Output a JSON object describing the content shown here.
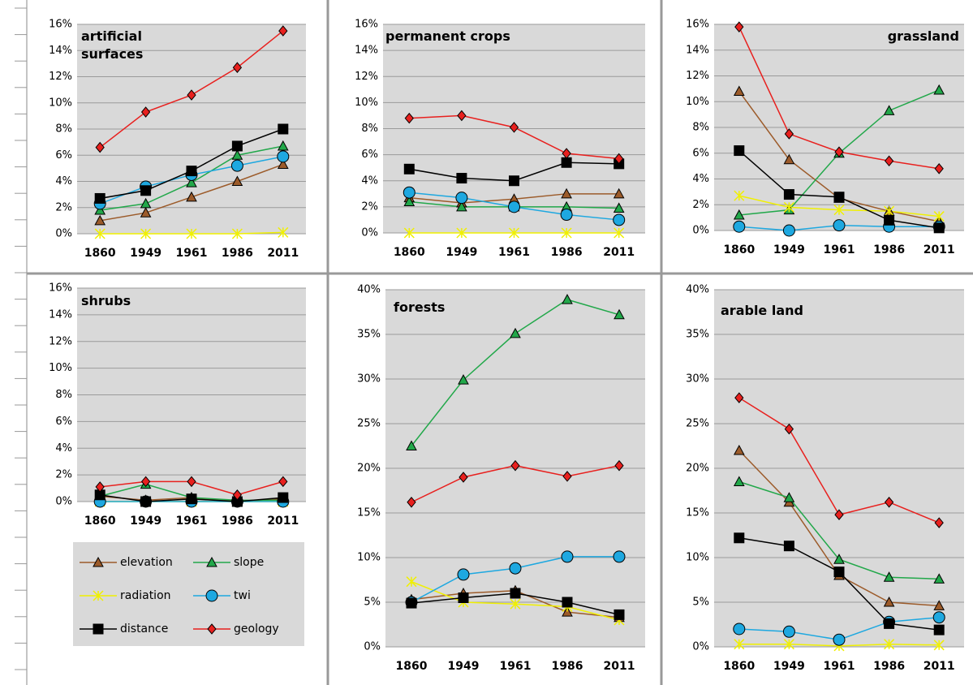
{
  "chart_data": [
    {
      "type": "line",
      "title": "artificial surfaces",
      "categories": [
        "1860",
        "1949",
        "1961",
        "1986",
        "2011"
      ],
      "ylim": [
        0,
        16
      ],
      "yticks": [
        {
          "value": 0,
          "label": "0%"
        },
        {
          "value": 2,
          "label": "2%"
        },
        {
          "value": 4,
          "label": "4%"
        },
        {
          "value": 6,
          "label": "6%"
        },
        {
          "value": 8,
          "label": "8%"
        },
        {
          "value": 10,
          "label": "10%"
        },
        {
          "value": 12,
          "label": "12%"
        },
        {
          "value": 14,
          "label": "14%"
        },
        {
          "value": 16,
          "label": "16%"
        }
      ],
      "grid": true,
      "series": [
        {
          "color": "#9c5b2a",
          "marker": "triangle",
          "values": [
            1.0,
            1.6,
            2.8,
            4.0,
            5.3
          ]
        },
        {
          "color": "#22a84a",
          "marker": "triangle",
          "values": [
            1.8,
            2.3,
            3.9,
            6.0,
            6.7
          ]
        },
        {
          "color": "#f0f000",
          "marker": "star",
          "values": [
            0,
            0,
            0,
            0,
            0.1
          ]
        },
        {
          "color": "#1ea8e0",
          "marker": "circle",
          "values": [
            2.3,
            3.6,
            4.5,
            5.2,
            5.9
          ]
        },
        {
          "color": "#000000",
          "marker": "square",
          "values": [
            2.7,
            3.3,
            4.8,
            6.7,
            8.0
          ]
        },
        {
          "color": "#e8201e",
          "marker": "diamond",
          "values": [
            6.6,
            9.3,
            10.6,
            12.7,
            15.5
          ]
        }
      ]
    },
    {
      "type": "line",
      "title": "permanent crops",
      "categories": [
        "1860",
        "1949",
        "1961",
        "1986",
        "2011"
      ],
      "ylim": [
        0,
        16
      ],
      "yticks": [
        {
          "value": 0,
          "label": "0%"
        },
        {
          "value": 2,
          "label": "2%"
        },
        {
          "value": 4,
          "label": "4%"
        },
        {
          "value": 6,
          "label": "6%"
        },
        {
          "value": 8,
          "label": "8%"
        },
        {
          "value": 10,
          "label": "10%"
        },
        {
          "value": 12,
          "label": "12%"
        },
        {
          "value": 14,
          "label": "14%"
        },
        {
          "value": 16,
          "label": "16%"
        }
      ],
      "grid": true,
      "series": [
        {
          "color": "#9c5b2a",
          "marker": "triangle",
          "values": [
            2.7,
            2.3,
            2.6,
            3.0,
            3.0
          ]
        },
        {
          "color": "#22a84a",
          "marker": "triangle",
          "values": [
            2.4,
            2.0,
            2.0,
            2.0,
            1.9
          ]
        },
        {
          "color": "#f0f000",
          "marker": "star",
          "values": [
            0,
            0,
            0,
            0,
            0
          ]
        },
        {
          "color": "#1ea8e0",
          "marker": "circle",
          "values": [
            3.1,
            2.7,
            2.0,
            1.4,
            1.0
          ]
        },
        {
          "color": "#000000",
          "marker": "square",
          "values": [
            4.9,
            4.2,
            4.0,
            5.4,
            5.3
          ]
        },
        {
          "color": "#e8201e",
          "marker": "diamond",
          "values": [
            8.8,
            9.0,
            8.1,
            6.1,
            5.7
          ]
        }
      ]
    },
    {
      "type": "line",
      "title": "grassland",
      "categories": [
        "1860",
        "1949",
        "1961",
        "1986",
        "2011"
      ],
      "ylim": [
        0,
        16
      ],
      "yticks": [
        {
          "value": 0,
          "label": "0%"
        },
        {
          "value": 2,
          "label": "2%"
        },
        {
          "value": 4,
          "label": "4%"
        },
        {
          "value": 6,
          "label": "6%"
        },
        {
          "value": 8,
          "label": "8%"
        },
        {
          "value": 10,
          "label": "10%"
        },
        {
          "value": 12,
          "label": "12%"
        },
        {
          "value": 14,
          "label": "14%"
        },
        {
          "value": 16,
          "label": "16%"
        }
      ],
      "grid": true,
      "series": [
        {
          "color": "#9c5b2a",
          "marker": "triangle",
          "values": [
            10.8,
            5.5,
            2.5,
            1.5,
            0.7
          ]
        },
        {
          "color": "#22a84a",
          "marker": "triangle",
          "values": [
            1.2,
            1.6,
            6.0,
            9.3,
            10.9
          ]
        },
        {
          "color": "#f0f000",
          "marker": "star",
          "values": [
            2.7,
            1.8,
            1.6,
            1.5,
            1.1
          ]
        },
        {
          "color": "#1ea8e0",
          "marker": "circle",
          "values": [
            0.3,
            0.0,
            0.4,
            0.3,
            0.3
          ]
        },
        {
          "color": "#000000",
          "marker": "square",
          "values": [
            6.2,
            2.8,
            2.6,
            0.8,
            0.2
          ]
        },
        {
          "color": "#e8201e",
          "marker": "diamond",
          "values": [
            15.8,
            7.5,
            6.1,
            5.4,
            4.8
          ]
        }
      ]
    },
    {
      "type": "line",
      "title": "shrubs",
      "categories": [
        "1860",
        "1949",
        "1961",
        "1986",
        "2011"
      ],
      "ylim": [
        0,
        16
      ],
      "yticks": [
        {
          "value": 0,
          "label": "0%"
        },
        {
          "value": 2,
          "label": "2%"
        },
        {
          "value": 4,
          "label": "4%"
        },
        {
          "value": 6,
          "label": "6%"
        },
        {
          "value": 8,
          "label": "8%"
        },
        {
          "value": 10,
          "label": "10%"
        },
        {
          "value": 12,
          "label": "12%"
        },
        {
          "value": 14,
          "label": "14%"
        },
        {
          "value": 16,
          "label": "16%"
        }
      ],
      "grid": true,
      "series": [
        {
          "name": "elevation",
          "color": "#9c5b2a",
          "marker": "triangle",
          "values": [
            0.4,
            0.1,
            0.3,
            0.0,
            0.2
          ]
        },
        {
          "name": "slope",
          "color": "#22a84a",
          "marker": "triangle",
          "values": [
            0.4,
            1.3,
            0.3,
            0.1,
            0.1
          ]
        },
        {
          "name": "radiation",
          "color": "#f0f000",
          "marker": "star",
          "values": [
            0,
            0,
            0,
            0,
            0
          ]
        },
        {
          "name": "twi",
          "color": "#1ea8e0",
          "marker": "circle",
          "values": [
            0,
            0,
            0,
            0,
            0
          ]
        },
        {
          "name": "distance",
          "color": "#000000",
          "marker": "square",
          "values": [
            0.5,
            0.0,
            0.2,
            0.0,
            0.3
          ]
        },
        {
          "name": "geology",
          "color": "#e8201e",
          "marker": "diamond",
          "values": [
            1.1,
            1.5,
            1.5,
            0.5,
            1.5
          ]
        }
      ]
    },
    {
      "type": "line",
      "title": "forests",
      "categories": [
        "1860",
        "1949",
        "1961",
        "1986",
        "2011"
      ],
      "ylim": [
        0,
        40
      ],
      "yticks": [
        {
          "value": 0,
          "label": "0%"
        },
        {
          "value": 5,
          "label": "5%"
        },
        {
          "value": 10,
          "label": "10%"
        },
        {
          "value": 15,
          "label": "15%"
        },
        {
          "value": 20,
          "label": "20%"
        },
        {
          "value": 25,
          "label": "25%"
        },
        {
          "value": 30,
          "label": "30%"
        },
        {
          "value": 35,
          "label": "35%"
        },
        {
          "value": 40,
          "label": "40%"
        }
      ],
      "grid": true,
      "series": [
        {
          "color": "#9c5b2a",
          "marker": "triangle",
          "values": [
            5.3,
            6.0,
            6.3,
            3.9,
            3.3
          ]
        },
        {
          "color": "#22a84a",
          "marker": "triangle",
          "values": [
            22.5,
            29.9,
            35.1,
            38.9,
            37.2
          ]
        },
        {
          "color": "#f0f000",
          "marker": "star",
          "values": [
            7.3,
            5.0,
            4.8,
            4.5,
            3.0
          ]
        },
        {
          "color": "#1ea8e0",
          "marker": "circle",
          "values": [
            5.0,
            8.1,
            8.8,
            10.1,
            10.1
          ]
        },
        {
          "color": "#000000",
          "marker": "square",
          "values": [
            4.9,
            5.5,
            6.0,
            5.0,
            3.6
          ]
        },
        {
          "color": "#e8201e",
          "marker": "diamond",
          "values": [
            16.2,
            19.0,
            20.3,
            19.1,
            20.3
          ]
        }
      ]
    },
    {
      "type": "line",
      "title": "arable land",
      "categories": [
        "1860",
        "1949",
        "1961",
        "1986",
        "2011"
      ],
      "ylim": [
        0,
        40
      ],
      "yticks": [
        {
          "value": 0,
          "label": "0%"
        },
        {
          "value": 5,
          "label": "5%"
        },
        {
          "value": 10,
          "label": "10%"
        },
        {
          "value": 15,
          "label": "15%"
        },
        {
          "value": 20,
          "label": "20%"
        },
        {
          "value": 25,
          "label": "25%"
        },
        {
          "value": 30,
          "label": "30%"
        },
        {
          "value": 35,
          "label": "35%"
        },
        {
          "value": 40,
          "label": "40%"
        }
      ],
      "grid": true,
      "series": [
        {
          "color": "#9c5b2a",
          "marker": "triangle",
          "values": [
            22.0,
            16.2,
            8.0,
            5.0,
            4.6
          ]
        },
        {
          "color": "#22a84a",
          "marker": "triangle",
          "values": [
            18.5,
            16.7,
            9.8,
            7.8,
            7.6
          ]
        },
        {
          "color": "#f0f000",
          "marker": "star",
          "values": [
            0.3,
            0.3,
            0.1,
            0.3,
            0.2
          ]
        },
        {
          "color": "#1ea8e0",
          "marker": "circle",
          "values": [
            2.0,
            1.7,
            0.8,
            2.8,
            3.3
          ]
        },
        {
          "color": "#000000",
          "marker": "square",
          "values": [
            12.2,
            11.3,
            8.4,
            2.6,
            1.9
          ]
        },
        {
          "color": "#e8201e",
          "marker": "diamond",
          "values": [
            27.9,
            24.4,
            14.8,
            16.2,
            13.9
          ]
        }
      ]
    }
  ]
}
